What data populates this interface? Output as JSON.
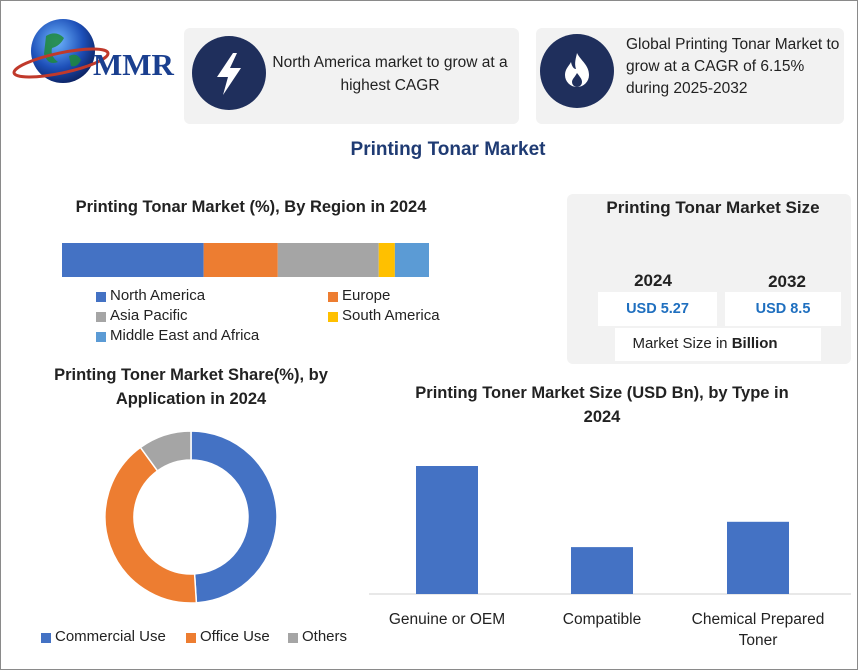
{
  "logo": {
    "text": "MMR"
  },
  "highlights": [
    {
      "text": "North America market to grow at a highest CAGR"
    },
    {
      "text": "Global Printing Tonar Market to grow at a CAGR of 6.15% during 2025-2032"
    }
  ],
  "title": "Printing Tonar Market",
  "market_size": {
    "title": "Printing Tonar Market Size",
    "columns": [
      {
        "year": "2024",
        "value": "USD 5.27"
      },
      {
        "year": "2032",
        "value": "USD 8.5"
      }
    ],
    "note": "Market Size in",
    "note_unit": "Billion"
  },
  "chart_data": [
    {
      "type": "stacked-bar",
      "title": "Printing Tonar Market (%), By Region in 2024",
      "series": [
        {
          "name": "North America",
          "color": "#4472c4",
          "values": [
            38.6
          ]
        },
        {
          "name": "Europe",
          "color": "#ed7d31",
          "values": [
            20.2
          ]
        },
        {
          "name": "Asia Pacific",
          "color": "#a5a5a5",
          "values": [
            27.5
          ]
        },
        {
          "name": "South America",
          "color": "#ffc000",
          "values": [
            4.4
          ]
        },
        {
          "name": "Middle East and Africa",
          "color": "#5b9bd5",
          "values": [
            9.3
          ]
        }
      ]
    },
    {
      "type": "donut",
      "title": "Printing Toner Market Share(%), by Application in 2024",
      "categories": [
        "Commercial Use",
        "Office Use",
        "Others"
      ],
      "values": [
        49,
        41,
        10
      ],
      "colors": [
        "#4472c4",
        "#ed7d31",
        "#a5a5a5"
      ]
    },
    {
      "type": "bar",
      "title": "Printing Toner Market Size (USD Bn), by Type in 2024",
      "categories": [
        "Genuine or OEM",
        "Compatible",
        "Chemical Prepared Toner"
      ],
      "values": [
        2.73,
        1.0,
        1.54
      ],
      "color": "#4472c4"
    }
  ]
}
